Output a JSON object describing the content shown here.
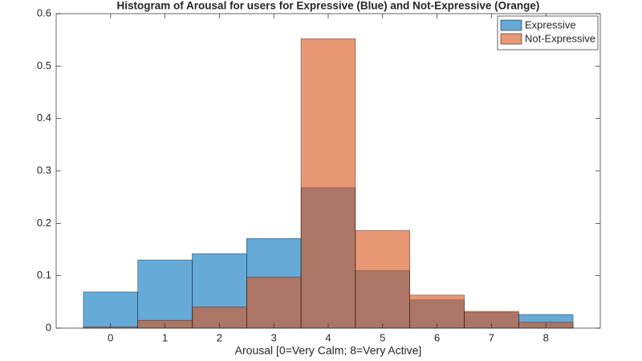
{
  "chart_data": {
    "type": "histogram",
    "title": "Histogram of Arousal for users for Expressive (Blue) and Not-Expressive (Orange)",
    "x_label": "Arousal [0=Very Calm; 8=Very Active]",
    "bins": [
      -0.5,
      0.5,
      1.5,
      2.5,
      3.5,
      4.5,
      5.5,
      6.5,
      7.5,
      8.5
    ],
    "series": [
      {
        "name": "Expressive",
        "color": "#0072bd",
        "values": [
          0.069,
          0.13,
          0.142,
          0.171,
          0.268,
          0.11,
          0.054,
          0.03,
          0.026
        ]
      },
      {
        "name": "Not-Expressive",
        "color": "#d95319",
        "values": [
          0.002,
          0.015,
          0.04,
          0.097,
          0.552,
          0.186,
          0.063,
          0.032,
          0.011
        ]
      }
    ],
    "xlim": [
      -1,
      9
    ],
    "xticks": [
      0,
      1,
      2,
      3,
      4,
      5,
      6,
      7,
      8
    ],
    "ylim": [
      0,
      0.6
    ],
    "yticks": [
      0,
      0.1,
      0.2,
      0.3,
      0.4,
      0.5,
      0.6
    ],
    "legend": "northeast"
  }
}
